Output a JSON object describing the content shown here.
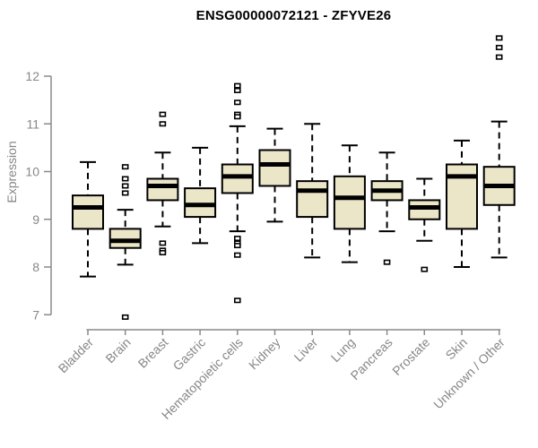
{
  "chart_data": {
    "type": "boxplot",
    "title": "ENSG00000072121 - ZFYVE26",
    "ylabel": "Expression",
    "xlabel": "",
    "ylim": [
      7,
      12
    ],
    "yticks": [
      7,
      8,
      9,
      10,
      11,
      12
    ],
    "grid": false,
    "legend": null,
    "categories": [
      "Bladder",
      "Brain",
      "Breast",
      "Gastric",
      "Hematopoietic cells",
      "Kidney",
      "Liver",
      "Lung",
      "Pancreas",
      "Prostate",
      "Skin",
      "Unknown / Other"
    ],
    "boxes": [
      {
        "category": "Bladder",
        "whisker_low": 7.8,
        "q1": 8.8,
        "median": 9.25,
        "q3": 9.5,
        "whisker_high": 10.2,
        "outliers": []
      },
      {
        "category": "Brain",
        "whisker_low": 8.05,
        "q1": 8.4,
        "median": 8.55,
        "q3": 8.8,
        "whisker_high": 9.2,
        "outliers": [
          10.1,
          9.85,
          9.7,
          9.55,
          6.95
        ]
      },
      {
        "category": "Breast",
        "whisker_low": 8.85,
        "q1": 9.4,
        "median": 9.7,
        "q3": 9.85,
        "whisker_high": 10.4,
        "outliers": [
          11.2,
          11.0,
          8.5,
          8.35,
          8.3
        ]
      },
      {
        "category": "Gastric",
        "whisker_low": 8.5,
        "q1": 9.05,
        "median": 9.3,
        "q3": 9.65,
        "whisker_high": 10.5,
        "outliers": []
      },
      {
        "category": "Hematopoietic cells",
        "whisker_low": 8.75,
        "q1": 9.55,
        "median": 9.9,
        "q3": 10.15,
        "whisker_high": 10.95,
        "outliers": [
          11.8,
          11.7,
          11.45,
          11.2,
          11.15,
          8.6,
          8.5,
          8.45,
          8.25,
          7.3
        ]
      },
      {
        "category": "Kidney",
        "whisker_low": 8.95,
        "q1": 9.7,
        "median": 10.15,
        "q3": 10.45,
        "whisker_high": 10.9,
        "outliers": []
      },
      {
        "category": "Liver",
        "whisker_low": 8.2,
        "q1": 9.05,
        "median": 9.6,
        "q3": 9.8,
        "whisker_high": 11.0,
        "outliers": []
      },
      {
        "category": "Lung",
        "whisker_low": 8.1,
        "q1": 8.8,
        "median": 9.45,
        "q3": 9.9,
        "whisker_high": 10.55,
        "outliers": []
      },
      {
        "category": "Pancreas",
        "whisker_low": 8.75,
        "q1": 9.4,
        "median": 9.6,
        "q3": 9.8,
        "whisker_high": 10.4,
        "outliers": [
          8.1
        ]
      },
      {
        "category": "Prostate",
        "whisker_low": 8.55,
        "q1": 9.0,
        "median": 9.25,
        "q3": 9.4,
        "whisker_high": 9.85,
        "outliers": [
          7.95
        ]
      },
      {
        "category": "Skin",
        "whisker_low": 8.0,
        "q1": 8.8,
        "median": 9.9,
        "q3": 10.15,
        "whisker_high": 10.65,
        "outliers": []
      },
      {
        "category": "Unknown / Other",
        "whisker_low": 8.2,
        "q1": 9.3,
        "median": 9.7,
        "q3": 10.1,
        "whisker_high": 11.05,
        "outliers": [
          12.8,
          12.6,
          12.4
        ]
      }
    ],
    "colors": {
      "background": "#ffffff",
      "box_fill": "#ece6c9",
      "box_border": "#000000",
      "median": "#000000",
      "whisker": "#000000",
      "outlier_stroke": "#000000",
      "outlier_fill": "#ffffff",
      "axis": "#8a8a8a",
      "tick_label": "#878787",
      "title": "#000000"
    }
  }
}
